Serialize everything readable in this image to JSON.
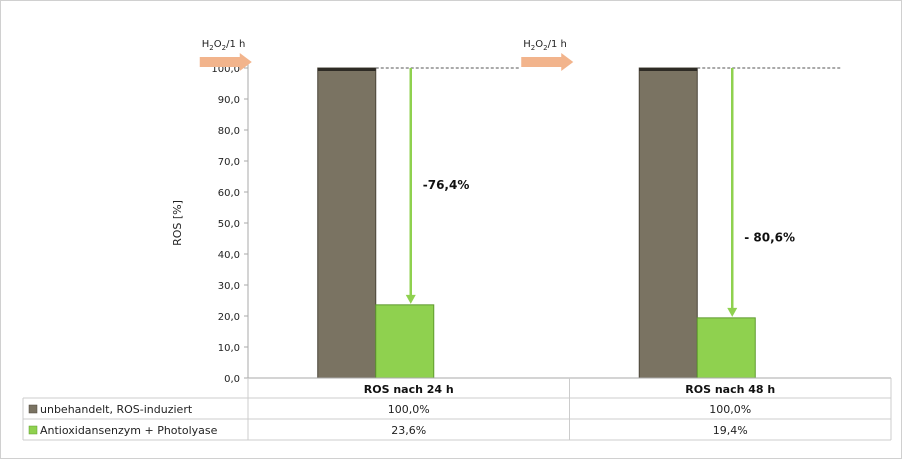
{
  "chart_data": {
    "type": "bar",
    "ylabel": "ROS [%]",
    "ylim": [
      0,
      100
    ],
    "yticks": [
      "0,0",
      "10,0",
      "20,0",
      "30,0",
      "40,0",
      "50,0",
      "60,0",
      "70,0",
      "80,0",
      "90,0",
      "100,0"
    ],
    "categories": [
      "ROS nach 24 h",
      "ROS nach 48 h"
    ],
    "series": [
      {
        "name": "unbehandelt, ROS-induziert",
        "values": [
          100.0,
          100.0
        ],
        "labels": [
          "100,0%",
          "100,0%"
        ],
        "color": "#7a7362"
      },
      {
        "name": "Antioxidansenzym + Photolyase",
        "values": [
          23.6,
          19.4
        ],
        "labels": [
          "23,6%",
          "19,4%"
        ],
        "color": "#8fd14f"
      }
    ],
    "annotations": [
      {
        "category": 0,
        "text": "-76,4%"
      },
      {
        "category": 1,
        "text": "- 80,6%"
      }
    ],
    "treatment_label": {
      "main": "H",
      "sub1": "2",
      "mid": "O",
      "sub2": "2",
      "tail": "/1 h"
    },
    "arrow_color": "#f2b48c",
    "reduction_arrow_color": "#8fd14f",
    "data_table": true
  }
}
